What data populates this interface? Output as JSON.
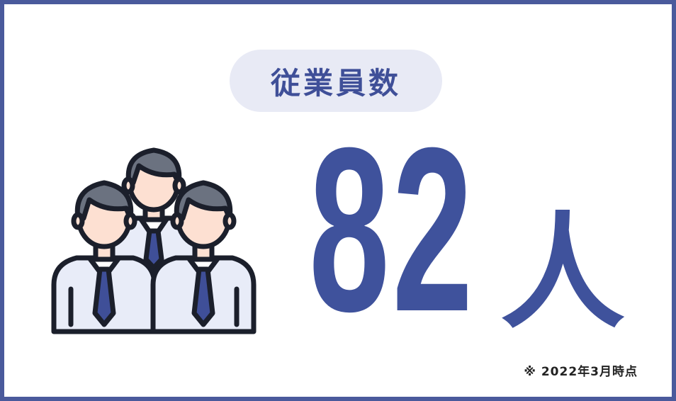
{
  "heading": {
    "label": "従業員数"
  },
  "employee_count": {
    "number": "82",
    "unit": "人"
  },
  "footnote": "※ 2022年3月時点",
  "icon": "employees-group-icon",
  "colors": {
    "border": "#4a5a9c",
    "accent": "#3f529c",
    "pill_background": "#e8eaf5",
    "hair": "#6b7280",
    "skin": "#fde0d2",
    "shirt": "#e8ecf8",
    "tie": "#3f4f98"
  }
}
